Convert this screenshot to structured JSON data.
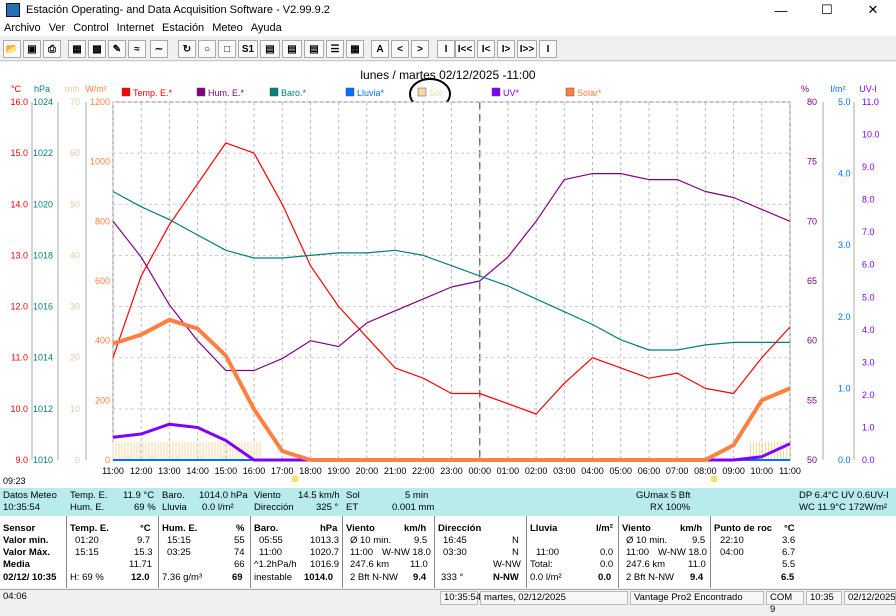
{
  "window": {
    "title": "Estación Operating- and Data Acquisition Software - V2.99.9.2"
  },
  "menu": [
    "Archivo",
    "Ver",
    "Control",
    "Internet",
    "Estación",
    "Meteo",
    "Ayuda"
  ],
  "toolbar": {
    "labels": [
      "A",
      "<",
      ">",
      "I",
      "I<<",
      "I<",
      "I>",
      "I>>",
      "I"
    ]
  },
  "chart": {
    "title": "lunes / martes  02/12/2025  -11:00",
    "left_units": [
      "°C",
      "hPa",
      "min",
      "W/m²"
    ],
    "right_units": [
      "%",
      "l/m²",
      "UV-I"
    ],
    "legend": [
      "Temp. E.*",
      "Hum. E.*",
      "Baro.*",
      "Lluvia*",
      "Sol",
      "UV*",
      "Solar*"
    ],
    "start_time": "09:23",
    "colors": {
      "temp": "#ff0000",
      "hum": "#800080",
      "baro": "#008080",
      "rain": "#0070ff",
      "sun": "#f5d9a0",
      "uv": "#8000ff",
      "solar": "#ff8040"
    },
    "axis_celsius": [
      "16.0",
      "15.0",
      "14.0",
      "13.0",
      "12.0",
      "11.0",
      "10.0",
      "9.0"
    ],
    "axis_hpa": [
      "1024",
      "1022",
      "1020",
      "1018",
      "1016",
      "1014",
      "1012",
      "1010"
    ],
    "axis_min": [
      "70",
      "60",
      "50",
      "40",
      "30",
      "20",
      "10",
      "0"
    ],
    "axis_wm2": [
      "1200",
      "1000",
      "800",
      "600",
      "400",
      "200",
      "0"
    ],
    "axis_pct": [
      "80",
      "75",
      "70",
      "65",
      "60",
      "55",
      "50"
    ],
    "axis_lm2": [
      "5.0",
      "4.0",
      "3.0",
      "2.0",
      "1.0",
      "0.0"
    ],
    "axis_uv": [
      "11.0",
      "10.0",
      "9.0",
      "8.0",
      "7.0",
      "6.0",
      "5.0",
      "4.0",
      "3.0",
      "2.0",
      "1.0",
      "0.0"
    ],
    "x_labels": [
      "11:00",
      "12:00",
      "13:00",
      "14:00",
      "15:00",
      "16:00",
      "17:00",
      "18:00",
      "19:00",
      "20:00",
      "21:00",
      "22:00",
      "23:00",
      "00:00",
      "01:00",
      "02:00",
      "03:00",
      "04:00",
      "05:00",
      "06:00",
      "07:00",
      "08:00",
      "09:00",
      "10:00",
      "11:00"
    ]
  },
  "chart_data": {
    "type": "line",
    "x": [
      "11:00",
      "12:00",
      "13:00",
      "14:00",
      "15:00",
      "16:00",
      "17:00",
      "18:00",
      "19:00",
      "20:00",
      "21:00",
      "22:00",
      "23:00",
      "00:00",
      "01:00",
      "02:00",
      "03:00",
      "04:00",
      "05:00",
      "06:00",
      "07:00",
      "08:00",
      "09:00",
      "10:00",
      "11:00"
    ],
    "series": [
      {
        "name": "Temp. E.*",
        "unit": "°C",
        "values": [
          11.0,
          12.6,
          13.6,
          14.4,
          15.2,
          15.0,
          14.0,
          12.8,
          12.0,
          11.4,
          10.8,
          10.6,
          10.3,
          10.3,
          10.1,
          9.9,
          10.5,
          11.0,
          10.8,
          10.6,
          10.7,
          10.4,
          10.3,
          11.0,
          11.6
        ]
      },
      {
        "name": "Hum. E.*",
        "unit": "%",
        "values": [
          70,
          67,
          63,
          60,
          57.5,
          57.5,
          58.5,
          60,
          59.5,
          61.5,
          62.5,
          63.5,
          64.5,
          65,
          67,
          70,
          73.5,
          74,
          74,
          73.5,
          73.5,
          72.5,
          72,
          71,
          70
        ]
      },
      {
        "name": "Baro.*",
        "unit": "hPa",
        "values": [
          1020.5,
          1019.9,
          1019.4,
          1018.8,
          1018.2,
          1017.9,
          1017.9,
          1018.0,
          1018.1,
          1018.1,
          1018.2,
          1018.0,
          1017.6,
          1017.2,
          1016.8,
          1016.3,
          1015.8,
          1015.3,
          1014.7,
          1014.3,
          1014.3,
          1014.5,
          1014.6,
          1014.6,
          1014.6
        ]
      },
      {
        "name": "Lluvia*",
        "unit": "l/m²",
        "values": [
          0,
          0,
          0,
          0,
          0,
          0,
          0,
          0,
          0,
          0,
          0,
          0,
          0,
          0,
          0,
          0,
          0,
          0,
          0,
          0,
          0,
          0,
          0,
          0,
          0
        ]
      },
      {
        "name": "UV*",
        "unit": "UV-I",
        "values": [
          0.7,
          0.8,
          1.1,
          1.0,
          0.6,
          0.0,
          0,
          0,
          0,
          0,
          0,
          0,
          0,
          0,
          0,
          0,
          0,
          0,
          0,
          0,
          0,
          0,
          0,
          0.1,
          0.5
        ]
      },
      {
        "name": "Solar*",
        "unit": "W/m²",
        "values": [
          390,
          420,
          470,
          440,
          350,
          170,
          30,
          0,
          0,
          0,
          0,
          0,
          0,
          0,
          0,
          0,
          0,
          0,
          0,
          0,
          0,
          0,
          50,
          200,
          240
        ]
      }
    ]
  },
  "panel": {
    "row1": {
      "datos_label": "Datos Meteo",
      "datos_time": "10:35:54",
      "temp_label": "Temp. E.",
      "temp_val": "11.9 °C",
      "hum_label": "Hum. E.",
      "hum_val": "69 %",
      "baro_label": "Baro.",
      "baro_val": "1014.0 hPa",
      "lluvia_label": "Lluvia",
      "lluvia_val": "0.0 l/m²",
      "viento_label": "Viento",
      "viento_val": "14.5 km/h",
      "dir_label": "Dirección",
      "dir_val": "325 °",
      "sol_label": "Sol",
      "sol_val": "5 min",
      "et_label": "ET",
      "et_val": "0.001 mm",
      "gu": "GUmax 5 Bft",
      "rx": "RX 100%",
      "dp": "DP 6.4°C  UV 0.6UV-I",
      "wc": "WC 11.9°C  172W/m²"
    },
    "sensor": {
      "h": "Sensor",
      "min": "Valor min.",
      "max": "Valor Máx.",
      "med": "Media",
      "date": "02/12/ 10:35"
    },
    "temp": {
      "h": "Temp. E.",
      "u": "°C",
      "t1": "01:20",
      "v1": "9.7",
      "t2": "15:15",
      "v2": "15.3",
      "v3": "11.71",
      "extra": "H: 69 %",
      "cur": "12.0"
    },
    "hum": {
      "h": "Hum. E.",
      "u": "%",
      "t1": "15:15",
      "v1": "55",
      "t2": "03:25",
      "v2": "74",
      "v3": "66",
      "extra": "7.36 g/m³",
      "cur": "69"
    },
    "baro": {
      "h": "Baro.",
      "u": "hPa",
      "t1": "05:55",
      "v1": "1013.3",
      "t2": "11:00",
      "v2": "1020.7",
      "v3": "1016.9",
      "trend": "^1.2hPa/h",
      "state": "inestable",
      "cur": "1014.0"
    },
    "viento": {
      "h": "Viento",
      "u": "km/h",
      "a": "Ø 10 min.",
      "av": "9.5",
      "b": "11:00",
      "bd": "W-NW 18.0",
      "c": "247.6 km",
      "cv": "11.0",
      "d": "2 Bft N-NW",
      "dv": "9.4"
    },
    "direccion": {
      "h": "Dirección",
      "t1": "16:45",
      "v1": "N",
      "t2": "03:30",
      "v2": "N",
      "v3": "W-NW",
      "deg": "333 °",
      "cur": "N-NW"
    },
    "lluvia": {
      "h": "Lluvia",
      "u": "l/m²",
      "t2": "11:00",
      "v2": "0.0",
      "total": "Total:",
      "tv": "0.0",
      "cur": "0.0 l/m²",
      "cv": "0.0"
    },
    "viento2": {
      "h": "Viento",
      "u": "km/h",
      "a": "Ø 10 min.",
      "av": "9.5",
      "b": "11:00",
      "bd": "W-NW 18.0",
      "c": "247.6 km",
      "cv": "11.0",
      "d": "2 Bft N-NW",
      "dv": "9.4"
    },
    "rocio": {
      "h": "Punto de roc",
      "u": "°C",
      "t1": "22:10",
      "v1": "3.6",
      "t2": "04:00",
      "v2": "6.7",
      "v3": "5.5",
      "cur": "6.5"
    }
  },
  "status": {
    "time": "04:06",
    "clock": "10:35:54",
    "date": "martes, 02/12/2025",
    "station": "Vantage Pro2 Encontrado",
    "com": "COM 9",
    "t2": "10:35",
    "d2": "02/12/2025"
  }
}
